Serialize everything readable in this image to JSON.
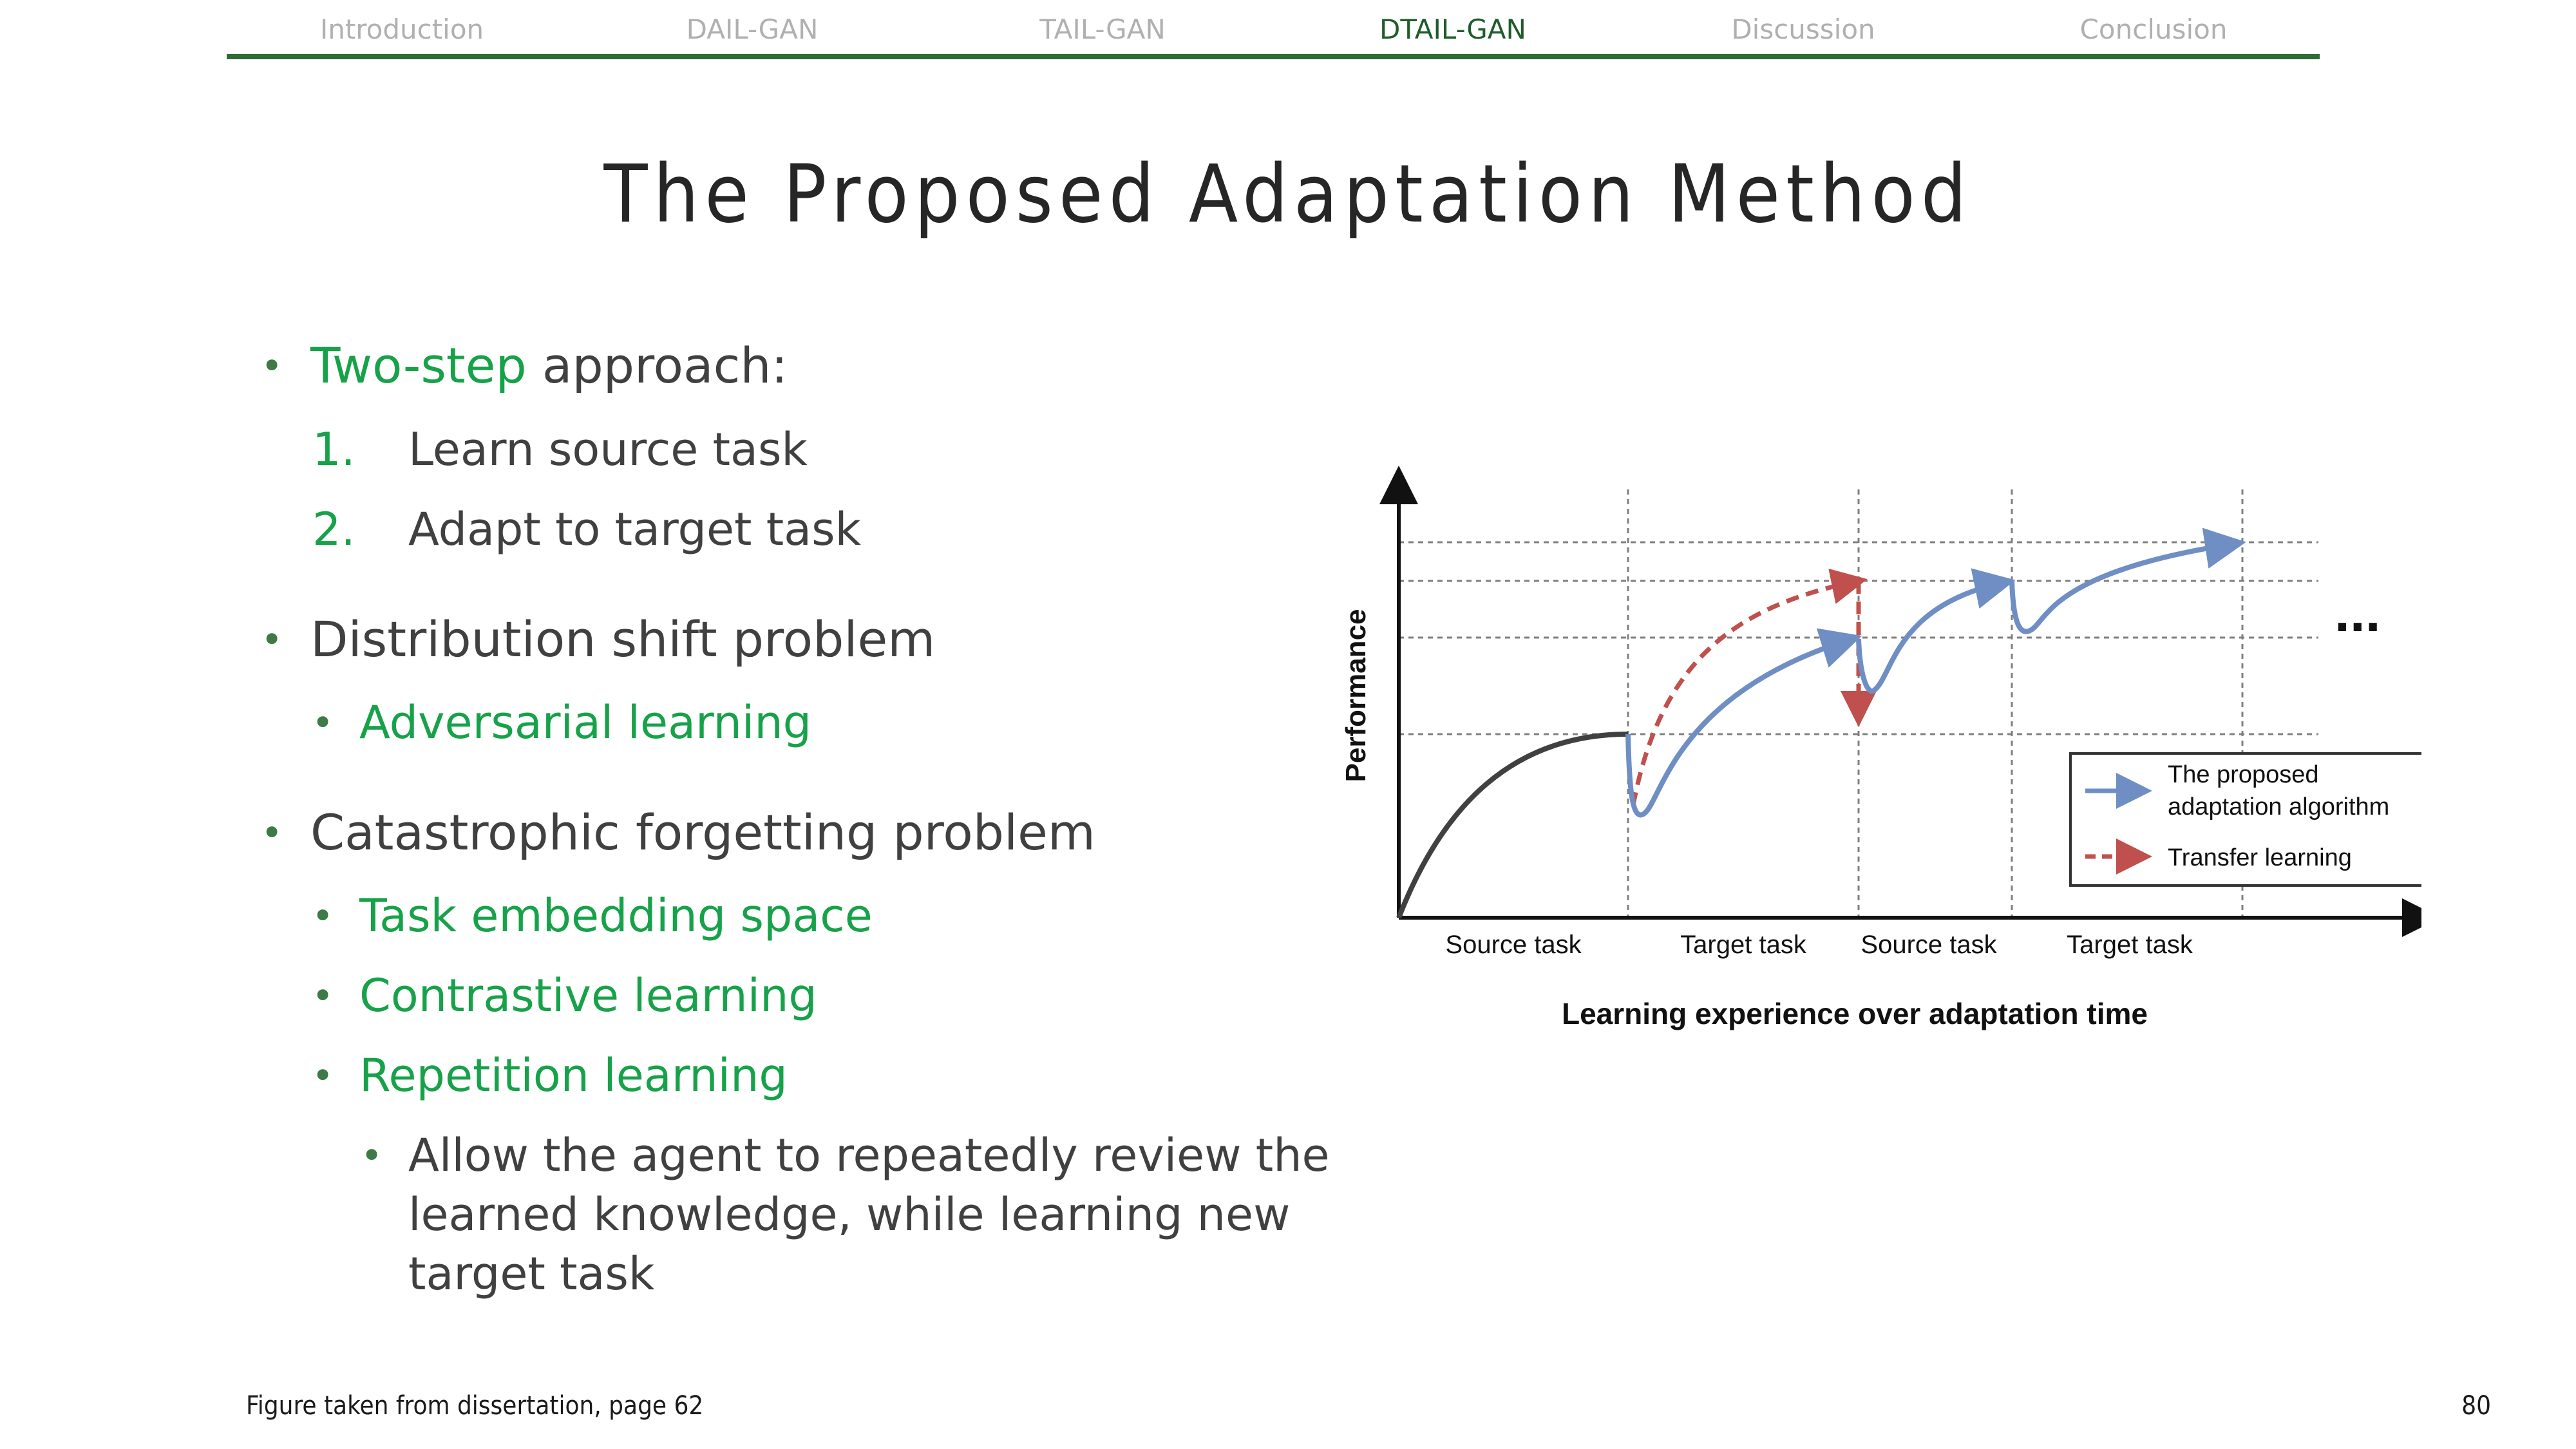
{
  "nav": {
    "items": [
      {
        "label": "Introduction",
        "active": false
      },
      {
        "label": "DAIL-GAN",
        "active": false
      },
      {
        "label": "TAIL-GAN",
        "active": false
      },
      {
        "label": "DTAIL-GAN",
        "active": true
      },
      {
        "label": "Discussion",
        "active": false
      },
      {
        "label": "Conclusion",
        "active": false
      }
    ],
    "active_color": "#1e5c2b",
    "inactive_color": "#b0b0b0",
    "rule_color": "#2e6b35"
  },
  "slide": {
    "title": "The Proposed Adaptation Method",
    "accent_color": "#17a24a"
  },
  "bullets": {
    "b1_highlight": "Two-step",
    "b1_rest": " approach:",
    "step1_num": "1.",
    "step1_text": "Learn source task",
    "step2_num": "2.",
    "step2_text": "Adapt to target task",
    "b2": "Distribution shift problem",
    "b2_sub1": "Adversarial learning",
    "b3": "Catastrophic forgetting problem",
    "b3_sub1": "Task embedding space",
    "b3_sub2": "Contrastive learning",
    "b3_sub3": "Repetition learning",
    "b3_sub3_detail_l1": "Allow the agent to repeatedly review the",
    "b3_sub3_detail_l2": "learned knowledge, while learning new",
    "b3_sub3_detail_l3": "target task"
  },
  "chart_data": {
    "type": "line",
    "ylabel": "Performance",
    "xlabel": "Learning experience over adaptation time",
    "x_tick_labels": [
      "Source task",
      "Target task",
      "Source task",
      "Target task"
    ],
    "continuation_marker": "...",
    "legend": {
      "placement": "bottom-right",
      "entries": [
        {
          "label_l1": "The proposed",
          "label_l2": "adaptation algorithm",
          "style": "solid-arrow",
          "color": "#6f8fc4"
        },
        {
          "label_l1": "Transfer learning",
          "style": "dashed-arrow",
          "color": "#c0504d"
        }
      ]
    },
    "series": [
      {
        "name": "Source task learning",
        "color": "#404040"
      },
      {
        "name": "The proposed adaptation algorithm",
        "color": "#6f8fc4"
      },
      {
        "name": "Transfer learning",
        "color": "#c0504d"
      }
    ],
    "grid": true
  },
  "footer": {
    "note": "Figure taken from dissertation, page 62",
    "page_number": "80"
  }
}
